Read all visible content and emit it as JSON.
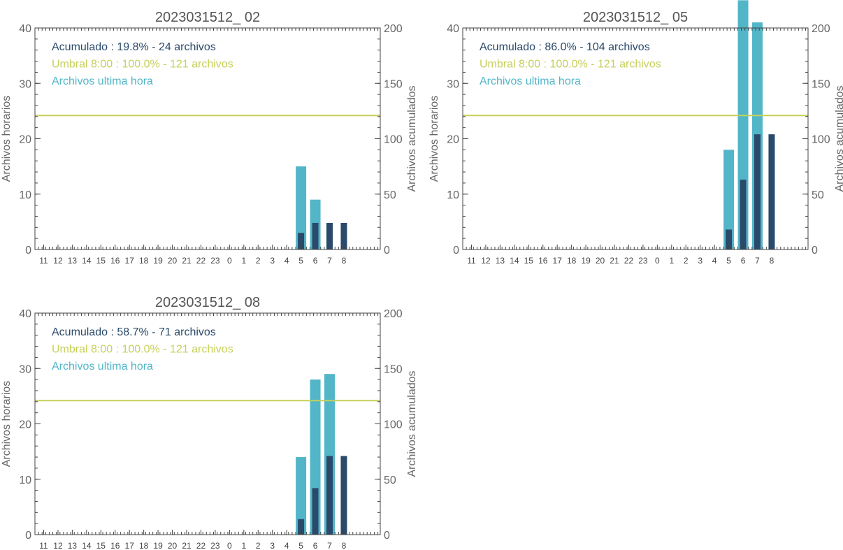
{
  "colors": {
    "hourly": "#52b6c8",
    "cumulative": "#2a4a6b",
    "threshold": "#c6d05a",
    "axis": "#444444",
    "text": "#666666"
  },
  "chart_data": [
    {
      "type": "bar",
      "title": "2023031512_ 02",
      "ylabel_left": "Archivos horarios",
      "ylabel_right": "Archivos acumulados",
      "ylim_left": [
        0,
        40
      ],
      "ylim_right": [
        0,
        200
      ],
      "yticks_left": [
        "0",
        "10",
        "20",
        "30",
        "40"
      ],
      "yticks_right": [
        "0",
        "50",
        "100",
        "150",
        "200"
      ],
      "categories": [
        "11",
        "12",
        "13",
        "14",
        "15",
        "16",
        "17",
        "18",
        "19",
        "20",
        "21",
        "22",
        "23",
        "0",
        "1",
        "2",
        "3",
        "4",
        "5",
        "6",
        "7",
        "8"
      ],
      "series": [
        {
          "name": "Archivos ultima hora",
          "axis": "left",
          "values": [
            0,
            0,
            0,
            0,
            0,
            0,
            0,
            0,
            0,
            0,
            0,
            0,
            0,
            0,
            0,
            0,
            0,
            0,
            15,
            9,
            0,
            0
          ]
        },
        {
          "name": "Acumulado",
          "axis": "right",
          "values": [
            0,
            0,
            0,
            0,
            0,
            0,
            0,
            0,
            0,
            0,
            0,
            0,
            0,
            0,
            0,
            0,
            0,
            0,
            15,
            24,
            24,
            24
          ]
        }
      ],
      "threshold_right": 121,
      "legend": [
        {
          "text": "Acumulado : 19.8% - 24 archivos",
          "color_key": "cumulative"
        },
        {
          "text": "Umbral 8:00 : 100.0% - 121 archivos",
          "color_key": "threshold"
        },
        {
          "text": "Archivos ultima hora",
          "color_key": "hourly"
        }
      ]
    },
    {
      "type": "bar",
      "title": "2023031512_ 05",
      "ylabel_left": "Archivos horarios",
      "ylabel_right": "Archivos acumulados",
      "ylim_left": [
        0,
        40
      ],
      "ylim_right": [
        0,
        200
      ],
      "yticks_left": [
        "0",
        "10",
        "20",
        "30",
        "40"
      ],
      "yticks_right": [
        "0",
        "50",
        "100",
        "150",
        "200"
      ],
      "categories": [
        "11",
        "12",
        "13",
        "14",
        "15",
        "16",
        "17",
        "18",
        "19",
        "20",
        "21",
        "22",
        "23",
        "0",
        "1",
        "2",
        "3",
        "4",
        "5",
        "6",
        "7",
        "8"
      ],
      "series": [
        {
          "name": "Archivos ultima hora",
          "axis": "left",
          "values": [
            0,
            0,
            0,
            0,
            0,
            0,
            0,
            0,
            0,
            0,
            0,
            0,
            0,
            0,
            0,
            0,
            0,
            0,
            18,
            45,
            41,
            0
          ]
        },
        {
          "name": "Acumulado",
          "axis": "right",
          "values": [
            0,
            0,
            0,
            0,
            0,
            0,
            0,
            0,
            0,
            0,
            0,
            0,
            0,
            0,
            0,
            0,
            0,
            0,
            18,
            63,
            104,
            104
          ]
        }
      ],
      "threshold_right": 121,
      "legend": [
        {
          "text": "Acumulado : 86.0% - 104 archivos",
          "color_key": "cumulative"
        },
        {
          "text": "Umbral 8:00 : 100.0% - 121 archivos",
          "color_key": "threshold"
        },
        {
          "text": "Archivos ultima hora",
          "color_key": "hourly"
        }
      ]
    },
    {
      "type": "bar",
      "title": "2023031512_ 08",
      "ylabel_left": "Archivos horarios",
      "ylabel_right": "Archivos acumulados",
      "ylim_left": [
        0,
        40
      ],
      "ylim_right": [
        0,
        200
      ],
      "yticks_left": [
        "0",
        "10",
        "20",
        "30",
        "40"
      ],
      "yticks_right": [
        "0",
        "50",
        "100",
        "150",
        "200"
      ],
      "categories": [
        "11",
        "12",
        "13",
        "14",
        "15",
        "16",
        "17",
        "18",
        "19",
        "20",
        "21",
        "22",
        "23",
        "0",
        "1",
        "2",
        "3",
        "4",
        "5",
        "6",
        "7",
        "8"
      ],
      "series": [
        {
          "name": "Archivos ultima hora",
          "axis": "left",
          "values": [
            0,
            0,
            0,
            0,
            0,
            0,
            0,
            0,
            0,
            0,
            0,
            0,
            0,
            0,
            0,
            0,
            0,
            0,
            14,
            28,
            29,
            0
          ]
        },
        {
          "name": "Acumulado",
          "axis": "right",
          "values": [
            0,
            0,
            0,
            0,
            0,
            0,
            0,
            0,
            0,
            0,
            0,
            0,
            0,
            0,
            0,
            0,
            0,
            0,
            14,
            42,
            71,
            71
          ]
        }
      ],
      "threshold_right": 121,
      "legend": [
        {
          "text": "Acumulado : 58.7% - 71 archivos",
          "color_key": "cumulative"
        },
        {
          "text": "Umbral 8:00 : 100.0% - 121 archivos",
          "color_key": "threshold"
        },
        {
          "text": "Archivos ultima hora",
          "color_key": "hourly"
        }
      ]
    }
  ]
}
